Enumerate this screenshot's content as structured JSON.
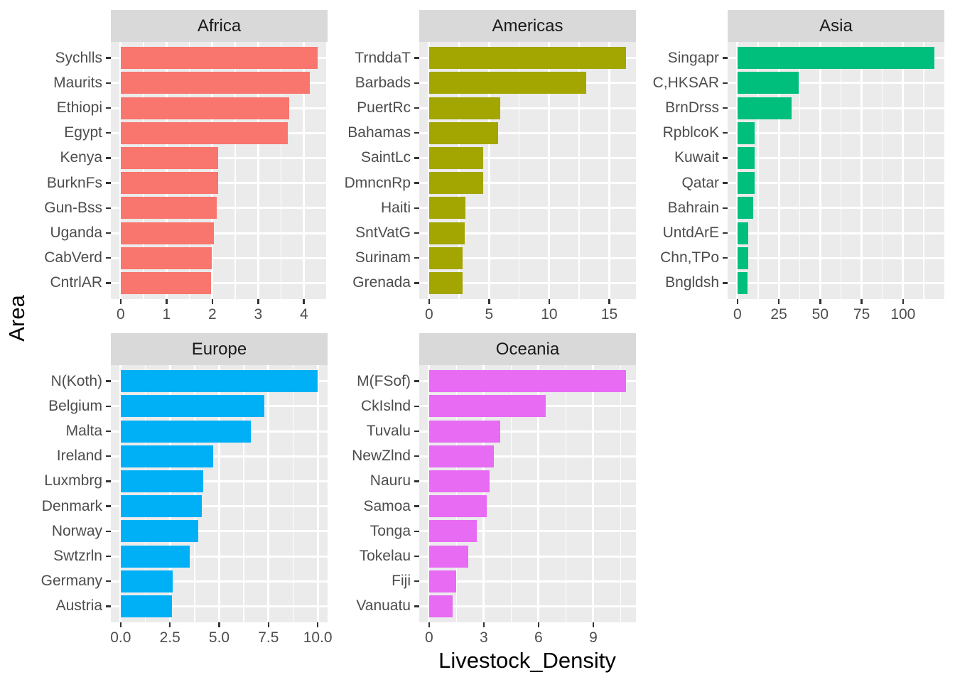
{
  "figure": {
    "x_axis_title": "Livestock_Density",
    "y_axis_title": "Area"
  },
  "chart_data": {
    "type": "bar",
    "orientation": "horizontal",
    "title": "",
    "xlabel": "Livestock_Density",
    "ylabel": "Area",
    "grid": "on",
    "legend_position": "none",
    "style": {
      "panel_background": "#EBEBEB",
      "strip_background": "#D9D9D9",
      "grid_color": "#FFFFFF",
      "axis_text_color": "#4D4D4D",
      "strip_text_color": "#1A1A1A",
      "tick_mark_color": "#333333"
    },
    "x_expansion_mult": 0.05,
    "facets": [
      {
        "name": "Africa",
        "grid_pos": {
          "row": 0,
          "col": 0
        },
        "bar_color": "#F8766D",
        "categories": [
          "Sychlls",
          "Maurits",
          "Ethiopi",
          "Egypt",
          "Kenya",
          "BurknFs",
          "Gun-Bss",
          "Uganda",
          "CabVerd",
          "CntrlAR"
        ],
        "values": [
          4.3,
          4.12,
          3.67,
          3.65,
          2.13,
          2.12,
          2.1,
          2.04,
          1.98,
          1.97
        ],
        "x_tick_labels": [
          "0",
          "1",
          "2",
          "3",
          "4"
        ],
        "x_tick_values": [
          0,
          1,
          2,
          3,
          4
        ],
        "xlim": [
          0,
          4.52
        ]
      },
      {
        "name": "Americas",
        "grid_pos": {
          "row": 0,
          "col": 1
        },
        "bar_color": "#A3A500",
        "categories": [
          "TrnddaT",
          "Barbads",
          "PuertRc",
          "Bahamas",
          "SaintLc",
          "DmncnRp",
          "Haiti",
          "SntVatG",
          "Surinam",
          "Grenada"
        ],
        "values": [
          16.4,
          13.1,
          5.9,
          5.75,
          4.5,
          4.48,
          3.0,
          2.95,
          2.8,
          2.76
        ],
        "x_tick_labels": [
          "0",
          "5",
          "10",
          "15"
        ],
        "x_tick_values": [
          0,
          5,
          10,
          15
        ],
        "xlim": [
          0,
          17.2
        ]
      },
      {
        "name": "Asia",
        "grid_pos": {
          "row": 0,
          "col": 2
        },
        "bar_color": "#00BF7D",
        "categories": [
          "Singapr",
          "C,HKSAR",
          "BrnDrss",
          "RpblcoK",
          "Kuwait",
          "Qatar",
          "Bahrain",
          "UntdArE",
          "Chn,TPo",
          "Bngldsh"
        ],
        "values": [
          119,
          37,
          32.5,
          10.5,
          10.2,
          10.2,
          9.3,
          6.7,
          6.3,
          6.0
        ],
        "x_tick_labels": [
          "0",
          "25",
          "50",
          "75",
          "100"
        ],
        "x_tick_values": [
          0,
          25,
          50,
          75,
          100
        ],
        "xlim": [
          0,
          125
        ]
      },
      {
        "name": "Europe",
        "grid_pos": {
          "row": 1,
          "col": 0
        },
        "bar_color": "#00B0F6",
        "categories": [
          "N(Koth)",
          "Belgium",
          "Malta",
          "Ireland",
          "Luxmbrg",
          "Denmark",
          "Norway",
          "Swtzrln",
          "Germany",
          "Austria"
        ],
        "values": [
          10.0,
          7.3,
          6.6,
          4.7,
          4.2,
          4.1,
          3.95,
          3.5,
          2.65,
          2.6
        ],
        "x_tick_labels": [
          "0.0",
          "2.5",
          "5.0",
          "7.5",
          "10.0"
        ],
        "x_tick_values": [
          0,
          2.5,
          5,
          7.5,
          10
        ],
        "xlim": [
          0,
          10.5
        ]
      },
      {
        "name": "Oceania",
        "grid_pos": {
          "row": 1,
          "col": 1
        },
        "bar_color": "#E76BF3",
        "categories": [
          "M(FSof)",
          "CkIslnd",
          "Tuvalu",
          "NewZlnd",
          "Nauru",
          "Samoa",
          "Tonga",
          "Tokelau",
          "Fiji",
          "Vanuatu"
        ],
        "values": [
          10.8,
          6.4,
          3.9,
          3.55,
          3.3,
          3.15,
          2.6,
          2.15,
          1.5,
          1.3
        ],
        "x_tick_labels": [
          "0",
          "3",
          "6",
          "9"
        ],
        "x_tick_values": [
          0,
          3,
          6,
          9
        ],
        "xlim": [
          0,
          11.34
        ]
      }
    ]
  }
}
